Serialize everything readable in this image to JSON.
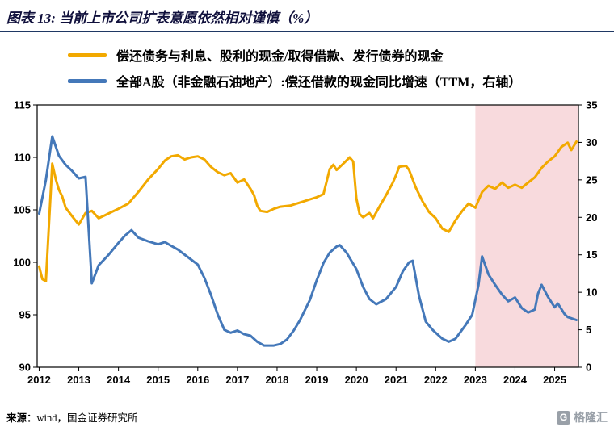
{
  "header": {
    "title": "图表 13: 当前上市公司扩表意愿依然相对谨慎（%）"
  },
  "footer": {
    "prefix": "来源：",
    "text": "wind，国金证券研究所"
  },
  "logo": {
    "mark": "G",
    "text": "格隆汇"
  },
  "chart_data": {
    "type": "line",
    "x_range": [
      2011.95,
      2025.6
    ],
    "x_ticks": [
      2012,
      2013,
      2014,
      2015,
      2016,
      2017,
      2018,
      2019,
      2020,
      2021,
      2022,
      2023,
      2024,
      2025
    ],
    "left_axis": {
      "min": 90,
      "max": 115,
      "ticks": [
        90,
        95,
        100,
        105,
        110,
        115
      ]
    },
    "right_axis": {
      "min": 0,
      "max": 35,
      "ticks": [
        0,
        5,
        10,
        15,
        20,
        25,
        30,
        35
      ]
    },
    "grid": false,
    "highlight_region": {
      "x_start": 2023,
      "x_end": 2025.6,
      "color": "#F8DADD"
    },
    "series": [
      {
        "name": "偿还债务与利息、股利的现金/取得借款、发行债券的现金",
        "axis": "left",
        "color": "#F2A900",
        "points": [
          [
            2012.0,
            99.6
          ],
          [
            2012.08,
            98.4
          ],
          [
            2012.17,
            98.2
          ],
          [
            2012.33,
            109.4
          ],
          [
            2012.42,
            107.9
          ],
          [
            2012.5,
            106.9
          ],
          [
            2012.58,
            106.3
          ],
          [
            2012.67,
            105.2
          ],
          [
            2012.83,
            104.4
          ],
          [
            2013.0,
            103.6
          ],
          [
            2013.17,
            104.7
          ],
          [
            2013.33,
            104.9
          ],
          [
            2013.5,
            104.2
          ],
          [
            2013.67,
            104.5
          ],
          [
            2013.83,
            104.8
          ],
          [
            2014.0,
            105.1
          ],
          [
            2014.25,
            105.6
          ],
          [
            2014.5,
            106.7
          ],
          [
            2014.75,
            107.9
          ],
          [
            2015.0,
            108.9
          ],
          [
            2015.17,
            109.7
          ],
          [
            2015.33,
            110.1
          ],
          [
            2015.5,
            110.2
          ],
          [
            2015.67,
            109.8
          ],
          [
            2015.83,
            110.0
          ],
          [
            2016.0,
            110.1
          ],
          [
            2016.17,
            109.8
          ],
          [
            2016.33,
            109.1
          ],
          [
            2016.5,
            108.6
          ],
          [
            2016.67,
            108.3
          ],
          [
            2016.83,
            108.5
          ],
          [
            2017.0,
            107.6
          ],
          [
            2017.17,
            107.9
          ],
          [
            2017.33,
            107.0
          ],
          [
            2017.42,
            106.4
          ],
          [
            2017.5,
            105.4
          ],
          [
            2017.58,
            104.9
          ],
          [
            2017.75,
            104.8
          ],
          [
            2017.92,
            105.1
          ],
          [
            2018.08,
            105.3
          ],
          [
            2018.33,
            105.4
          ],
          [
            2018.58,
            105.7
          ],
          [
            2018.83,
            106.0
          ],
          [
            2019.0,
            106.2
          ],
          [
            2019.17,
            106.5
          ],
          [
            2019.33,
            108.9
          ],
          [
            2019.42,
            109.3
          ],
          [
            2019.5,
            108.8
          ],
          [
            2019.67,
            109.4
          ],
          [
            2019.83,
            110.0
          ],
          [
            2019.92,
            109.6
          ],
          [
            2020.0,
            106.1
          ],
          [
            2020.08,
            104.6
          ],
          [
            2020.17,
            104.3
          ],
          [
            2020.33,
            104.7
          ],
          [
            2020.42,
            104.2
          ],
          [
            2020.58,
            105.3
          ],
          [
            2020.75,
            106.4
          ],
          [
            2020.92,
            107.6
          ],
          [
            2021.0,
            108.3
          ],
          [
            2021.08,
            109.1
          ],
          [
            2021.25,
            109.2
          ],
          [
            2021.33,
            108.8
          ],
          [
            2021.5,
            107.1
          ],
          [
            2021.67,
            105.8
          ],
          [
            2021.83,
            104.8
          ],
          [
            2022.0,
            104.2
          ],
          [
            2022.17,
            103.2
          ],
          [
            2022.33,
            102.9
          ],
          [
            2022.5,
            104.0
          ],
          [
            2022.67,
            104.9
          ],
          [
            2022.83,
            105.6
          ],
          [
            2023.0,
            105.2
          ],
          [
            2023.17,
            106.7
          ],
          [
            2023.33,
            107.3
          ],
          [
            2023.5,
            107.0
          ],
          [
            2023.67,
            107.6
          ],
          [
            2023.83,
            107.1
          ],
          [
            2024.0,
            107.4
          ],
          [
            2024.17,
            107.1
          ],
          [
            2024.33,
            107.6
          ],
          [
            2024.5,
            108.1
          ],
          [
            2024.67,
            109.0
          ],
          [
            2024.83,
            109.6
          ],
          [
            2025.0,
            110.1
          ],
          [
            2025.17,
            111.0
          ],
          [
            2025.33,
            111.4
          ],
          [
            2025.42,
            110.7
          ],
          [
            2025.55,
            111.5
          ]
        ]
      },
      {
        "name": "全部A股（非金融石油地产）:偿还借款的现金同比增速（TTM，右轴）",
        "axis": "right",
        "color": "#4478B9",
        "points": [
          [
            2012.0,
            20.5
          ],
          [
            2012.17,
            25.0
          ],
          [
            2012.33,
            30.8
          ],
          [
            2012.5,
            28.2
          ],
          [
            2012.67,
            27.0
          ],
          [
            2012.83,
            26.2
          ],
          [
            2013.0,
            25.2
          ],
          [
            2013.17,
            25.4
          ],
          [
            2013.33,
            11.2
          ],
          [
            2013.5,
            13.6
          ],
          [
            2013.75,
            15.0
          ],
          [
            2014.0,
            16.6
          ],
          [
            2014.17,
            17.6
          ],
          [
            2014.33,
            18.3
          ],
          [
            2014.5,
            17.3
          ],
          [
            2014.75,
            16.8
          ],
          [
            2015.0,
            16.4
          ],
          [
            2015.17,
            16.7
          ],
          [
            2015.33,
            16.2
          ],
          [
            2015.5,
            15.7
          ],
          [
            2015.75,
            14.7
          ],
          [
            2016.0,
            13.7
          ],
          [
            2016.17,
            11.9
          ],
          [
            2016.33,
            9.7
          ],
          [
            2016.5,
            7.1
          ],
          [
            2016.67,
            5.0
          ],
          [
            2016.83,
            4.6
          ],
          [
            2017.0,
            4.9
          ],
          [
            2017.17,
            4.4
          ],
          [
            2017.33,
            4.2
          ],
          [
            2017.5,
            3.4
          ],
          [
            2017.67,
            2.9
          ],
          [
            2017.92,
            2.9
          ],
          [
            2018.08,
            3.1
          ],
          [
            2018.25,
            3.7
          ],
          [
            2018.42,
            4.9
          ],
          [
            2018.58,
            6.3
          ],
          [
            2018.83,
            9.0
          ],
          [
            2019.0,
            11.6
          ],
          [
            2019.17,
            13.9
          ],
          [
            2019.33,
            15.3
          ],
          [
            2019.5,
            16.1
          ],
          [
            2019.58,
            16.3
          ],
          [
            2019.75,
            15.3
          ],
          [
            2020.0,
            13.1
          ],
          [
            2020.17,
            10.7
          ],
          [
            2020.33,
            9.1
          ],
          [
            2020.5,
            8.4
          ],
          [
            2020.75,
            9.1
          ],
          [
            2021.0,
            10.7
          ],
          [
            2021.17,
            12.8
          ],
          [
            2021.33,
            14.0
          ],
          [
            2021.42,
            14.2
          ],
          [
            2021.58,
            9.5
          ],
          [
            2021.75,
            6.1
          ],
          [
            2021.92,
            5.0
          ],
          [
            2022.0,
            4.6
          ],
          [
            2022.17,
            3.8
          ],
          [
            2022.33,
            3.4
          ],
          [
            2022.5,
            3.8
          ],
          [
            2022.75,
            5.6
          ],
          [
            2022.92,
            7.0
          ],
          [
            2023.0,
            9.0
          ],
          [
            2023.08,
            11.0
          ],
          [
            2023.17,
            14.8
          ],
          [
            2023.33,
            12.4
          ],
          [
            2023.5,
            11.0
          ],
          [
            2023.67,
            9.7
          ],
          [
            2023.83,
            8.8
          ],
          [
            2024.0,
            9.3
          ],
          [
            2024.17,
            7.9
          ],
          [
            2024.33,
            7.3
          ],
          [
            2024.5,
            7.7
          ],
          [
            2024.58,
            9.8
          ],
          [
            2024.67,
            11.0
          ],
          [
            2024.83,
            9.4
          ],
          [
            2025.0,
            8.0
          ],
          [
            2025.08,
            8.5
          ],
          [
            2025.25,
            7.1
          ],
          [
            2025.33,
            6.7
          ],
          [
            2025.55,
            6.3
          ]
        ]
      }
    ]
  }
}
